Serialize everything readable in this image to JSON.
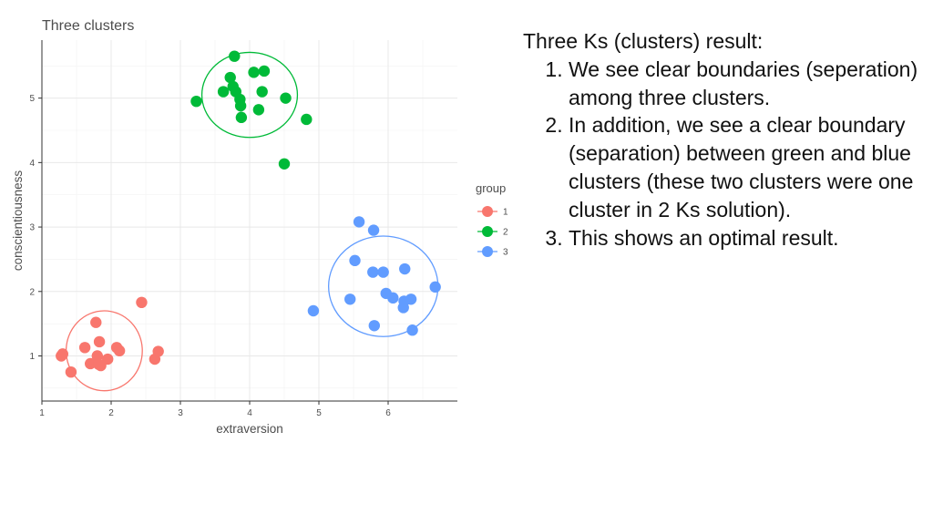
{
  "chart_data": {
    "type": "scatter",
    "title": "Three clusters",
    "xlabel": "extraversion",
    "ylabel": "conscientiousness",
    "xlim": [
      1,
      7
    ],
    "ylim": [
      0.3,
      5.9
    ],
    "x_ticks": [
      1,
      2,
      3,
      4,
      5,
      6
    ],
    "y_ticks": [
      1,
      2,
      3,
      4,
      5
    ],
    "grid": true,
    "legend": {
      "title": "group",
      "position": "right"
    },
    "series": [
      {
        "name": "1",
        "color": "#f8766d",
        "points": [
          [
            1.28,
            1.0
          ],
          [
            1.3,
            1.03
          ],
          [
            1.42,
            0.75
          ],
          [
            1.62,
            1.13
          ],
          [
            1.7,
            0.88
          ],
          [
            1.78,
            1.52
          ],
          [
            1.8,
            1.0
          ],
          [
            1.82,
            0.87
          ],
          [
            1.83,
            1.22
          ],
          [
            1.85,
            0.85
          ],
          [
            1.95,
            0.95
          ],
          [
            2.08,
            1.13
          ],
          [
            2.12,
            1.08
          ],
          [
            2.44,
            1.83
          ],
          [
            2.63,
            0.95
          ],
          [
            2.68,
            1.07
          ]
        ],
        "ellipse": {
          "cx": 1.9,
          "cy": 1.08,
          "rx": 0.55,
          "ry": 0.62
        }
      },
      {
        "name": "2",
        "color": "#00ba38",
        "points": [
          [
            3.23,
            4.95
          ],
          [
            3.62,
            5.1
          ],
          [
            3.72,
            5.32
          ],
          [
            3.76,
            5.18
          ],
          [
            3.78,
            5.65
          ],
          [
            3.8,
            5.1
          ],
          [
            3.86,
            4.98
          ],
          [
            3.87,
            4.88
          ],
          [
            3.88,
            4.7
          ],
          [
            4.06,
            5.4
          ],
          [
            4.13,
            4.82
          ],
          [
            4.18,
            5.1
          ],
          [
            4.21,
            5.42
          ],
          [
            4.5,
            3.98
          ],
          [
            4.52,
            5.0
          ],
          [
            4.82,
            4.67
          ]
        ],
        "ellipse": {
          "cx": 4.0,
          "cy": 5.05,
          "rx": 0.69,
          "ry": 0.66
        }
      },
      {
        "name": "3",
        "color": "#619cff",
        "points": [
          [
            4.92,
            1.7
          ],
          [
            5.45,
            1.88
          ],
          [
            5.52,
            2.48
          ],
          [
            5.58,
            3.08
          ],
          [
            5.78,
            2.3
          ],
          [
            5.79,
            2.95
          ],
          [
            5.8,
            1.47
          ],
          [
            5.93,
            2.3
          ],
          [
            5.97,
            1.97
          ],
          [
            6.07,
            1.9
          ],
          [
            6.22,
            1.75
          ],
          [
            6.23,
            1.85
          ],
          [
            6.24,
            2.35
          ],
          [
            6.33,
            1.88
          ],
          [
            6.35,
            1.4
          ],
          [
            6.68,
            2.07
          ]
        ],
        "ellipse": {
          "cx": 5.93,
          "cy": 2.08,
          "rx": 0.79,
          "ry": 0.78
        }
      }
    ]
  },
  "notes": {
    "heading": "Three Ks (clusters) result:",
    "items": [
      "We see clear boundaries (seperation) among three clusters.",
      "In addition, we see a clear boundary (separation) between green and blue clusters (these two clusters were one cluster in 2 Ks solution).",
      "This shows an optimal result."
    ]
  }
}
